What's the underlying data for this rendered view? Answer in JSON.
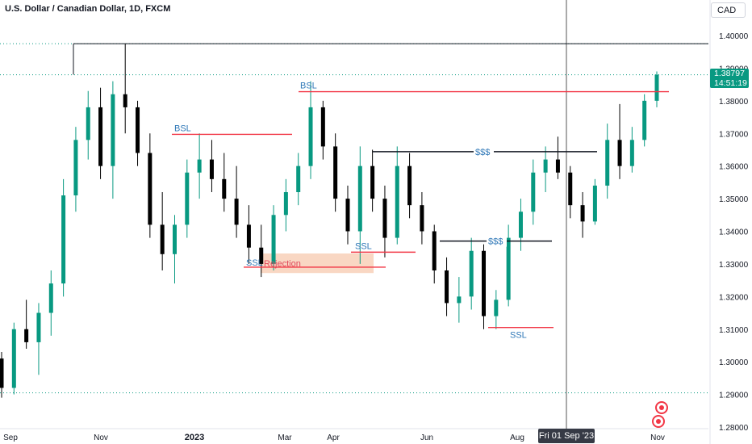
{
  "header": {
    "title": "U.S. Dollar / Canadian Dollar, 1D, FXCM"
  },
  "currency_button": "CAD",
  "last_price": {
    "value": "1.38797",
    "countdown": "14:51:19"
  },
  "crosshair": {
    "date_label": "Fri 01 Sep '23"
  },
  "colors": {
    "up": "#089981",
    "down": "#000000",
    "level": "#f23645",
    "text_blue": "#2962ff",
    "zone": "#f8d0b8",
    "axis_text": "#131722"
  },
  "icons": [
    "canada-flag-icon",
    "usa-flag-icon"
  ],
  "chart_data": {
    "type": "candlestick",
    "title": "U.S. Dollar / Canadian Dollar, 1D, FXCM",
    "y_axis": {
      "ticks": [
        "1.40000",
        "1.39000",
        "1.38000",
        "1.37000",
        "1.36000",
        "1.35000",
        "1.34000",
        "1.33000",
        "1.32000",
        "1.31000",
        "1.30000",
        "1.29000",
        "1.28000"
      ],
      "range": [
        1.2785,
        1.4055
      ]
    },
    "x_axis": {
      "ticks": [
        "Sep",
        "Nov",
        "2023",
        "Mar",
        "Apr",
        "Jun",
        "Aug",
        "Nov"
      ]
    },
    "grid": "horizontal-dotted",
    "candles_approx": [
      {
        "o": 1.301,
        "h": 1.303,
        "l": 1.289,
        "c": 1.292
      },
      {
        "o": 1.292,
        "h": 1.312,
        "l": 1.29,
        "c": 1.31
      },
      {
        "o": 1.31,
        "h": 1.319,
        "l": 1.304,
        "c": 1.306
      },
      {
        "o": 1.306,
        "h": 1.318,
        "l": 1.296,
        "c": 1.315
      },
      {
        "o": 1.315,
        "h": 1.328,
        "l": 1.308,
        "c": 1.324
      },
      {
        "o": 1.324,
        "h": 1.356,
        "l": 1.32,
        "c": 1.351
      },
      {
        "o": 1.351,
        "h": 1.372,
        "l": 1.346,
        "c": 1.368
      },
      {
        "o": 1.368,
        "h": 1.383,
        "l": 1.362,
        "c": 1.378
      },
      {
        "o": 1.378,
        "h": 1.384,
        "l": 1.356,
        "c": 1.36
      },
      {
        "o": 1.36,
        "h": 1.386,
        "l": 1.35,
        "c": 1.382
      },
      {
        "o": 1.382,
        "h": 1.3975,
        "l": 1.37,
        "c": 1.378
      },
      {
        "o": 1.378,
        "h": 1.38,
        "l": 1.36,
        "c": 1.364
      },
      {
        "o": 1.364,
        "h": 1.37,
        "l": 1.338,
        "c": 1.342
      },
      {
        "o": 1.342,
        "h": 1.352,
        "l": 1.328,
        "c": 1.333
      },
      {
        "o": 1.333,
        "h": 1.345,
        "l": 1.324,
        "c": 1.342
      },
      {
        "o": 1.342,
        "h": 1.362,
        "l": 1.338,
        "c": 1.358
      },
      {
        "o": 1.358,
        "h": 1.37,
        "l": 1.35,
        "c": 1.362
      },
      {
        "o": 1.362,
        "h": 1.368,
        "l": 1.352,
        "c": 1.356
      },
      {
        "o": 1.356,
        "h": 1.364,
        "l": 1.346,
        "c": 1.35
      },
      {
        "o": 1.35,
        "h": 1.36,
        "l": 1.338,
        "c": 1.342
      },
      {
        "o": 1.342,
        "h": 1.348,
        "l": 1.33,
        "c": 1.335
      },
      {
        "o": 1.335,
        "h": 1.342,
        "l": 1.326,
        "c": 1.33
      },
      {
        "o": 1.33,
        "h": 1.348,
        "l": 1.328,
        "c": 1.345
      },
      {
        "o": 1.345,
        "h": 1.356,
        "l": 1.34,
        "c": 1.352
      },
      {
        "o": 1.352,
        "h": 1.364,
        "l": 1.348,
        "c": 1.36
      },
      {
        "o": 1.36,
        "h": 1.386,
        "l": 1.356,
        "c": 1.378
      },
      {
        "o": 1.378,
        "h": 1.38,
        "l": 1.362,
        "c": 1.366
      },
      {
        "o": 1.366,
        "h": 1.37,
        "l": 1.346,
        "c": 1.35
      },
      {
        "o": 1.35,
        "h": 1.354,
        "l": 1.336,
        "c": 1.34
      },
      {
        "o": 1.34,
        "h": 1.366,
        "l": 1.33,
        "c": 1.36
      },
      {
        "o": 1.36,
        "h": 1.365,
        "l": 1.346,
        "c": 1.35
      },
      {
        "o": 1.35,
        "h": 1.354,
        "l": 1.332,
        "c": 1.338
      },
      {
        "o": 1.338,
        "h": 1.366,
        "l": 1.336,
        "c": 1.36
      },
      {
        "o": 1.36,
        "h": 1.364,
        "l": 1.344,
        "c": 1.348
      },
      {
        "o": 1.348,
        "h": 1.352,
        "l": 1.336,
        "c": 1.34
      },
      {
        "o": 1.34,
        "h": 1.342,
        "l": 1.324,
        "c": 1.328
      },
      {
        "o": 1.328,
        "h": 1.332,
        "l": 1.314,
        "c": 1.318
      },
      {
        "o": 1.318,
        "h": 1.326,
        "l": 1.312,
        "c": 1.32
      },
      {
        "o": 1.32,
        "h": 1.338,
        "l": 1.316,
        "c": 1.334
      },
      {
        "o": 1.334,
        "h": 1.336,
        "l": 1.31,
        "c": 1.314
      },
      {
        "o": 1.314,
        "h": 1.322,
        "l": 1.31,
        "c": 1.319
      },
      {
        "o": 1.319,
        "h": 1.342,
        "l": 1.317,
        "c": 1.338
      },
      {
        "o": 1.338,
        "h": 1.35,
        "l": 1.334,
        "c": 1.346
      },
      {
        "o": 1.346,
        "h": 1.362,
        "l": 1.342,
        "c": 1.358
      },
      {
        "o": 1.358,
        "h": 1.366,
        "l": 1.352,
        "c": 1.362
      },
      {
        "o": 1.362,
        "h": 1.369,
        "l": 1.356,
        "c": 1.358
      },
      {
        "o": 1.358,
        "h": 1.36,
        "l": 1.344,
        "c": 1.348
      },
      {
        "o": 1.348,
        "h": 1.352,
        "l": 1.338,
        "c": 1.343
      },
      {
        "o": 1.343,
        "h": 1.356,
        "l": 1.342,
        "c": 1.354
      },
      {
        "o": 1.354,
        "h": 1.373,
        "l": 1.35,
        "c": 1.368
      },
      {
        "o": 1.368,
        "h": 1.379,
        "l": 1.356,
        "c": 1.36
      },
      {
        "o": 1.36,
        "h": 1.372,
        "l": 1.358,
        "c": 1.368
      },
      {
        "o": 1.368,
        "h": 1.382,
        "l": 1.366,
        "c": 1.38
      },
      {
        "o": 1.38,
        "h": 1.389,
        "l": 1.378,
        "c": 1.388
      }
    ],
    "annotations": [
      {
        "label": "BSL",
        "price": 1.3697
      },
      {
        "label": "BSL",
        "price": 1.3828
      },
      {
        "label": "SSL",
        "price": 1.328
      },
      {
        "label": "SSL",
        "price": 1.3336
      },
      {
        "label": "SSL",
        "price": 1.3105
      },
      {
        "label": "Rejection",
        "zone": [
          1.3275,
          1.33
        ]
      },
      {
        "label": "$$$",
        "price": 1.3644
      },
      {
        "label": "$$$",
        "price": 1.337
      },
      {
        "label": "",
        "price": 1.3975
      }
    ]
  }
}
